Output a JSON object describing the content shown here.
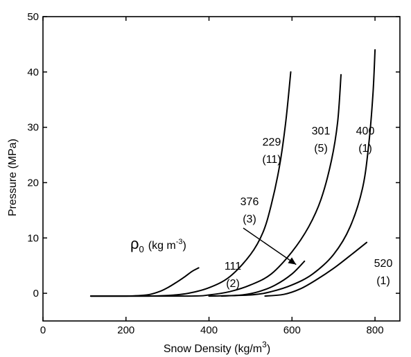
{
  "chart_data": {
    "type": "line",
    "title": "",
    "xlabel": "Snow Density (kg/m",
    "xlabel_sup": "3",
    "xlabel_tail": ")",
    "ylabel": "Pressure (MPa)",
    "xlim": [
      0,
      860
    ],
    "ylim": [
      -5,
      50
    ],
    "xticks": [
      0,
      200,
      400,
      600,
      800
    ],
    "xtick_labels": [
      "0",
      "200",
      "400",
      "600",
      "800"
    ],
    "yticks": [
      0,
      10,
      20,
      30,
      40,
      50
    ],
    "ytick_labels": [
      "0",
      "10",
      "20",
      "30",
      "40",
      "50"
    ],
    "grid": false,
    "legend_title": {
      "symbol": "ρ",
      "subscript": "0",
      "units": "(kg m",
      "units_sup": "-3",
      "units_tail": ")"
    },
    "series": [
      {
        "name": "111",
        "count_label": "(2)",
        "x": [
          115,
          200,
          250,
          280,
          300,
          320,
          340,
          360,
          375
        ],
        "y": [
          -0.5,
          -0.5,
          -0.3,
          0.3,
          1.0,
          1.9,
          2.9,
          4.0,
          4.6
        ]
      },
      {
        "name": "229",
        "count_label": "(11)",
        "x": [
          115,
          250,
          300,
          350,
          400,
          450,
          500,
          530,
          550,
          570,
          585,
          597
        ],
        "y": [
          -0.5,
          -0.5,
          -0.4,
          0,
          1.0,
          3.0,
          7.0,
          11.0,
          16.0,
          23.0,
          31.0,
          40.0
        ]
      },
      {
        "name": "301",
        "count_label": "(5)",
        "x": [
          115,
          350,
          400,
          450,
          500,
          550,
          600,
          640,
          670,
          695,
          710,
          718
        ],
        "y": [
          -0.5,
          -0.5,
          -0.3,
          0.3,
          1.5,
          3.5,
          7.5,
          12.0,
          17.0,
          24.0,
          31.0,
          39.5
        ]
      },
      {
        "name": "376",
        "count_label": "(3)",
        "x": [
          430,
          480,
          520,
          560,
          600,
          630
        ],
        "y": [
          -0.5,
          -0.3,
          0.3,
          1.5,
          3.5,
          5.8
        ]
      },
      {
        "name": "400",
        "count_label": "(1)",
        "x": [
          400,
          500,
          550,
          600,
          650,
          700,
          740,
          770,
          785,
          795,
          800
        ],
        "y": [
          -0.5,
          -0.3,
          0.3,
          1.5,
          3.5,
          7.0,
          12.0,
          19.0,
          27.0,
          36.0,
          44.0
        ]
      },
      {
        "name": "520",
        "count_label": "(1)",
        "x": [
          535,
          580,
          620,
          660,
          700,
          740,
          780
        ],
        "y": [
          -0.5,
          -0.2,
          0.8,
          2.5,
          4.5,
          6.8,
          9.2
        ]
      }
    ],
    "annotations": [
      {
        "text": "376",
        "sub": "(3)",
        "arrow_from": [
          540,
          16
        ],
        "arrow_to": [
          610,
          5.2
        ]
      }
    ]
  }
}
